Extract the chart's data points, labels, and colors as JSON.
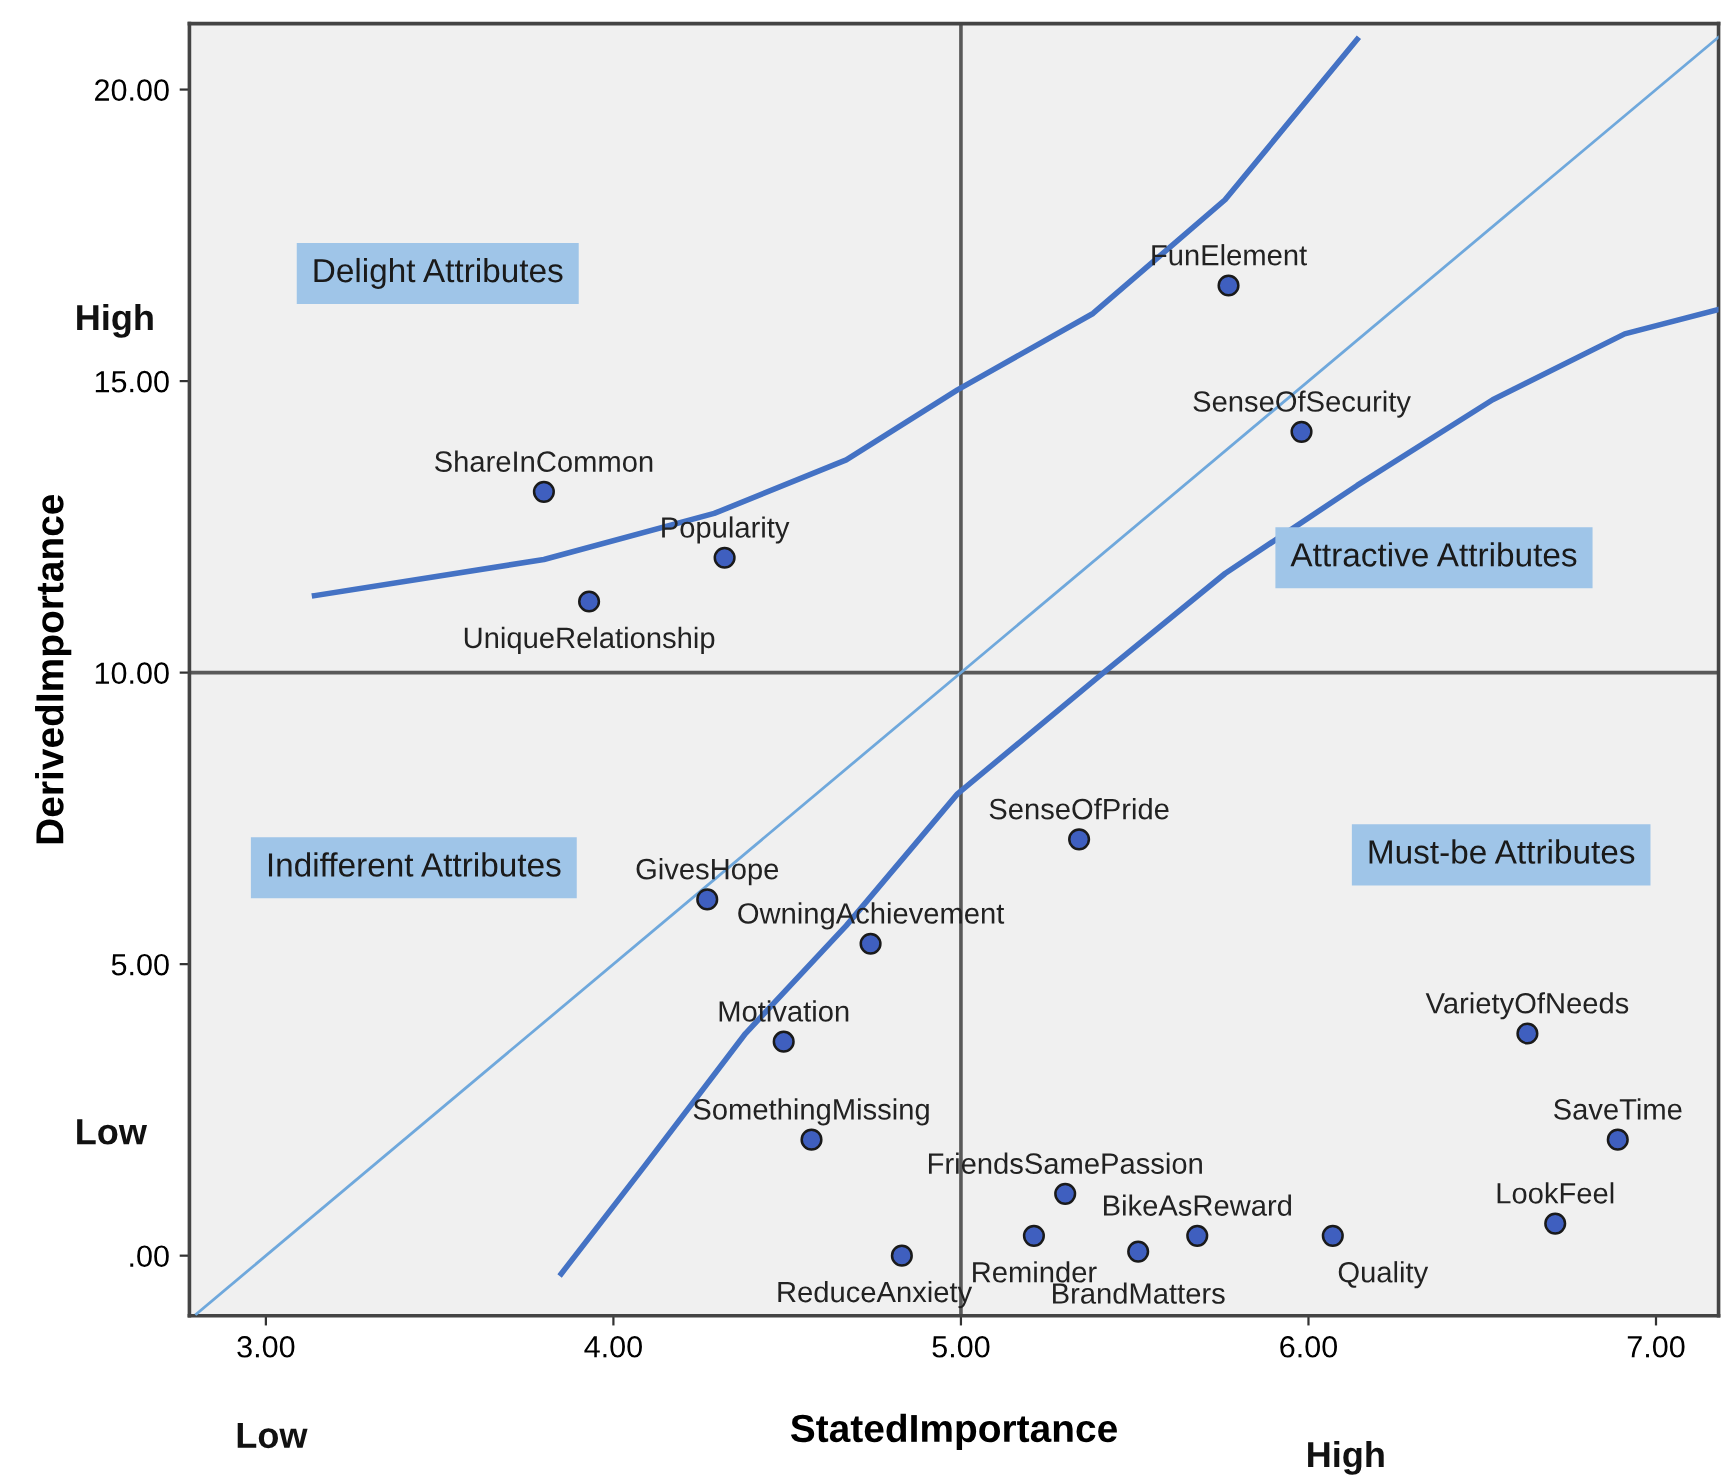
{
  "chart_data": {
    "type": "scatter",
    "xlabel": "StatedImportance",
    "ylabel": "DerivedImportance",
    "xlim": [
      2.78,
      7.18
    ],
    "ylim": [
      -1.03,
      21.13
    ],
    "xticks": [
      {
        "value": 3,
        "label": "3.00"
      },
      {
        "value": 4,
        "label": "4.00"
      },
      {
        "value": 5,
        "label": "5.00"
      },
      {
        "value": 6,
        "label": "6.00"
      },
      {
        "value": 7,
        "label": "7.00"
      }
    ],
    "yticks": [
      {
        "value": 0,
        "label": ".00"
      },
      {
        "value": 5,
        "label": "5.00"
      },
      {
        "value": 10,
        "label": "10.00"
      },
      {
        "value": 15,
        "label": "15.00"
      },
      {
        "value": 20,
        "label": "20.00"
      }
    ],
    "grid": false,
    "ref_lines": [
      {
        "axis": "x",
        "value": 5,
        "color": "#595959"
      },
      {
        "axis": "y",
        "value": 10,
        "color": "#595959"
      }
    ],
    "series": [
      {
        "marker": "circle",
        "color": "#3f5fbf",
        "x": [
          5.77,
          5.98,
          3.8,
          4.32,
          3.93,
          5.34,
          4.27,
          4.74,
          4.49,
          4.57,
          4.83,
          5.3,
          5.21,
          5.51,
          5.68,
          6.07,
          6.63,
          6.89,
          6.71
        ],
        "values": [
          16.64,
          14.13,
          13.1,
          11.97,
          11.22,
          7.14,
          6.11,
          5.35,
          3.67,
          1.99,
          0.0,
          1.06,
          0.34,
          0.07,
          0.34,
          0.34,
          3.81,
          1.99,
          0.55
        ]
      },
      {
        "type": "line",
        "color": "#6fa8dc",
        "x": [
          2.8,
          7.18
        ],
        "values": [
          -1.0,
          20.9
        ]
      },
      {
        "type": "line",
        "color": "#4472c4",
        "x": [
          3.14,
          3.8,
          4.29,
          4.67,
          4.99,
          5.38,
          5.76,
          6.14
        ],
        "values": [
          11.32,
          11.94,
          12.73,
          13.65,
          14.85,
          16.16,
          18.11,
          20.86
        ]
      },
      {
        "type": "line",
        "color": "#4472c4",
        "x": [
          3.85,
          4.09,
          4.38,
          4.67,
          4.99,
          5.4,
          5.76,
          6.14,
          6.53,
          6.91,
          7.18
        ],
        "values": [
          -0.31,
          1.54,
          3.81,
          5.66,
          7.92,
          9.95,
          11.7,
          13.21,
          14.68,
          15.81,
          16.23
        ]
      }
    ],
    "annotations": [
      {
        "text": "FunElement",
        "x": 5.77,
        "y": 16.64
      },
      {
        "text": "SenseOfSecurity",
        "x": 5.98,
        "y": 14.13
      },
      {
        "text": "ShareInCommon",
        "x": 3.8,
        "y": 13.1
      },
      {
        "text": "Popularity",
        "x": 4.32,
        "y": 11.97
      },
      {
        "text": "UniqueRelationship",
        "x": 3.93,
        "y": 11.22
      },
      {
        "text": "SenseOfPride",
        "x": 5.34,
        "y": 7.14
      },
      {
        "text": "GivesHope",
        "x": 4.27,
        "y": 6.11
      },
      {
        "text": "OwningAchievement",
        "x": 4.74,
        "y": 5.35
      },
      {
        "text": "Motivation",
        "x": 4.49,
        "y": 3.67
      },
      {
        "text": "SomethingMissing",
        "x": 4.57,
        "y": 1.99
      },
      {
        "text": "ReduceAnxiety",
        "x": 4.83,
        "y": 0.0
      },
      {
        "text": "FriendsSamePassion",
        "x": 5.3,
        "y": 1.06
      },
      {
        "text": "Reminder",
        "x": 5.21,
        "y": 0.34
      },
      {
        "text": "BrandMatters",
        "x": 5.51,
        "y": 0.07
      },
      {
        "text": "BikeAsReward",
        "x": 5.68,
        "y": 0.34
      },
      {
        "text": "Quality",
        "x": 6.07,
        "y": 0.34
      },
      {
        "text": "VarietyOfNeeds",
        "x": 6.63,
        "y": 3.81
      },
      {
        "text": "SaveTime",
        "x": 6.89,
        "y": 1.99
      },
      {
        "text": "LookFeel",
        "x": 6.71,
        "y": 0.55
      },
      "Delight Attributes",
      "Attractive Attributes",
      "Indifferent Attributes",
      "Must-be Attributes",
      "High",
      "Low",
      "Low",
      "High"
    ]
  }
}
